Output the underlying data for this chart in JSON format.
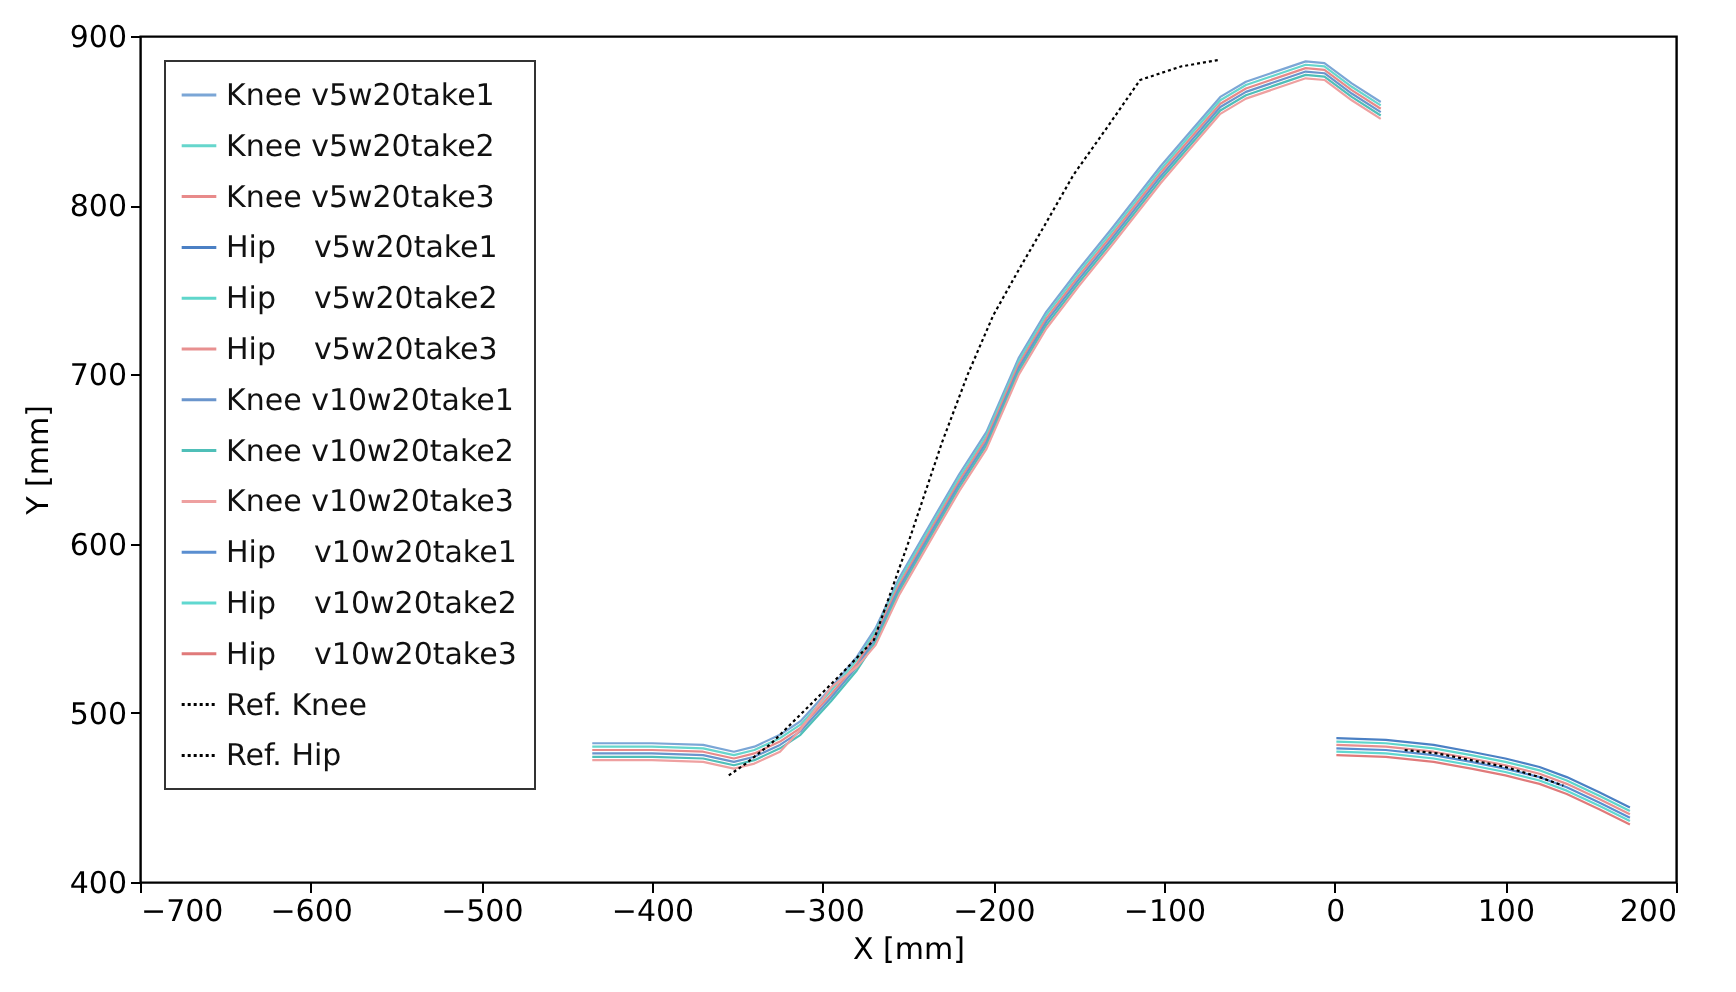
{
  "chart_data": {
    "type": "line",
    "xlabel": "X [mm]",
    "ylabel": "Y [mm]",
    "xlim": [
      -700,
      200
    ],
    "xticks": [
      -700,
      -600,
      -500,
      -400,
      -300,
      -200,
      -100,
      0,
      100,
      200
    ],
    "ylim": [
      400,
      900
    ],
    "yticks": [
      400,
      500,
      600,
      700,
      800,
      900
    ],
    "grid": false,
    "legend": "top left",
    "series": [
      {
        "name": "Knee v5w20take1",
        "color": "#7ba6d6",
        "x": [
          -435,
          -400,
          -370,
          -352,
          -340,
          -325,
          -313,
          -295,
          -280,
          -269,
          -255,
          -235,
          -220,
          -204,
          -185,
          -169,
          -150,
          -130,
          -102,
          -85,
          -67,
          -52,
          -17,
          -6,
          10,
          27
        ],
        "values": [
          482,
          482,
          481,
          477,
          480,
          487,
          495,
          515,
          533,
          550,
          580,
          615,
          641,
          666,
          710,
          737,
          762,
          787,
          823,
          843,
          864,
          873,
          885,
          884,
          872,
          861
        ]
      },
      {
        "name": "Knee v5w20take2",
        "color": "#66d6cc",
        "x": [
          -435,
          -400,
          -370,
          -352,
          -340,
          -325,
          -313,
          -295,
          -280,
          -269,
          -255,
          -235,
          -220,
          -204,
          -185,
          -169,
          -150,
          -130,
          -102,
          -85,
          -67,
          -52,
          -17,
          -6,
          10,
          27
        ],
        "values": [
          480,
          480,
          479,
          475,
          478,
          485,
          493,
          513,
          531,
          548,
          578,
          613,
          639,
          664,
          708,
          735,
          760,
          785,
          821,
          841,
          862,
          871,
          883,
          882,
          870,
          859
        ]
      },
      {
        "name": "Knee v5w20take3",
        "color": "#e88a8a",
        "x": [
          -435,
          -400,
          -370,
          -352,
          -340,
          -325,
          -313,
          -295,
          -280,
          -269,
          -255,
          -235,
          -220,
          -204,
          -185,
          -169,
          -150,
          -130,
          -102,
          -85,
          -67,
          -52,
          -17,
          -6,
          10,
          27
        ],
        "values": [
          478,
          478,
          477,
          473,
          476,
          483,
          491,
          511,
          529,
          546,
          576,
          611,
          637,
          662,
          706,
          733,
          758,
          783,
          819,
          839,
          860,
          869,
          881,
          880,
          868,
          857
        ]
      },
      {
        "name": "Hip    v5w20take1",
        "color": "#4b80c4",
        "x": [
          1,
          30,
          58,
          80,
          100,
          120,
          136,
          155,
          173
        ],
        "values": [
          485,
          484,
          481,
          477,
          473,
          468,
          462,
          453,
          444
        ]
      },
      {
        "name": "Hip    v5w20take2",
        "color": "#5fd6cb",
        "x": [
          1,
          30,
          58,
          80,
          100,
          120,
          136,
          155,
          173
        ],
        "values": [
          483,
          482,
          479,
          475,
          471,
          466,
          460,
          451,
          442
        ]
      },
      {
        "name": "Hip    v5w20take3",
        "color": "#e89090",
        "x": [
          1,
          30,
          58,
          80,
          100,
          120,
          136,
          155,
          173
        ],
        "values": [
          481,
          480,
          477,
          473,
          469,
          464,
          458,
          449,
          440
        ]
      },
      {
        "name": "Knee v10w20take1",
        "color": "#6a95cc",
        "x": [
          -435,
          -400,
          -370,
          -352,
          -340,
          -325,
          -313,
          -295,
          -280,
          -269,
          -255,
          -235,
          -220,
          -204,
          -185,
          -169,
          -150,
          -130,
          -102,
          -85,
          -67,
          -52,
          -17,
          -6,
          10,
          27
        ],
        "values": [
          476,
          476,
          475,
          471,
          474,
          481,
          489,
          509,
          527,
          544,
          574,
          609,
          635,
          660,
          704,
          731,
          756,
          781,
          817,
          837,
          858,
          867,
          879,
          878,
          866,
          855
        ]
      },
      {
        "name": "Knee v10w20take2",
        "color": "#4fbfb8",
        "x": [
          -435,
          -400,
          -370,
          -352,
          -340,
          -325,
          -313,
          -295,
          -280,
          -269,
          -255,
          -235,
          -220,
          -204,
          -185,
          -169,
          -150,
          -130,
          -102,
          -85,
          -67,
          -52,
          -17,
          -6,
          10,
          27
        ],
        "values": [
          474,
          474,
          473,
          469,
          472,
          479,
          487,
          507,
          525,
          542,
          572,
          607,
          633,
          658,
          702,
          729,
          754,
          779,
          815,
          835,
          856,
          865,
          877,
          876,
          864,
          853
        ]
      },
      {
        "name": "Knee v10w20take3",
        "color": "#eea0a0",
        "x": [
          -435,
          -400,
          -370,
          -352,
          -340,
          -325,
          -313,
          -295,
          -280,
          -269,
          -255,
          -235,
          -220,
          -204,
          -185,
          -169,
          -150,
          -130,
          -102,
          -85,
          -67,
          -52,
          -17,
          -6,
          10,
          27
        ],
        "values": [
          472,
          472,
          471,
          467,
          470,
          477,
          490,
          515,
          527,
          540,
          570,
          605,
          631,
          656,
          700,
          727,
          752,
          777,
          813,
          833,
          854,
          863,
          875,
          874,
          862,
          851
        ]
      },
      {
        "name": "Hip    v10w20take1",
        "color": "#5a8ed0",
        "x": [
          1,
          30,
          58,
          80,
          100,
          120,
          136,
          155,
          173
        ],
        "values": [
          479,
          478,
          475,
          471,
          467,
          462,
          456,
          447,
          438
        ]
      },
      {
        "name": "Hip    v10w20take2",
        "color": "#60d8d0",
        "x": [
          1,
          30,
          58,
          80,
          100,
          120,
          136,
          155,
          173
        ],
        "values": [
          477,
          476,
          473,
          469,
          465,
          460,
          454,
          445,
          436
        ]
      },
      {
        "name": "Hip    v10w20take3",
        "color": "#e07a7a",
        "x": [
          1,
          30,
          58,
          80,
          100,
          120,
          136,
          155,
          173
        ],
        "values": [
          475,
          474,
          471,
          467,
          463,
          458,
          452,
          443,
          434
        ]
      },
      {
        "name": "Ref. Knee",
        "color": "#000000",
        "line_style": "dotted",
        "x": [
          -355,
          -345,
          -330,
          -310,
          -290,
          -270,
          -250,
          -230,
          -215,
          -200,
          -185,
          -170,
          -153,
          -134,
          -114,
          -90,
          -67
        ],
        "values": [
          463,
          470,
          482,
          502,
          522,
          543,
          600,
          660,
          700,
          735,
          762,
          788,
          818,
          845,
          874,
          882,
          886
        ]
      },
      {
        "name": "Ref. Hip",
        "color": "#000000",
        "line_style": "dotted",
        "x": [
          41,
          60,
          80,
          100,
          120,
          134
        ],
        "values": [
          478,
          476,
          472,
          468,
          462,
          457
        ]
      }
    ]
  }
}
